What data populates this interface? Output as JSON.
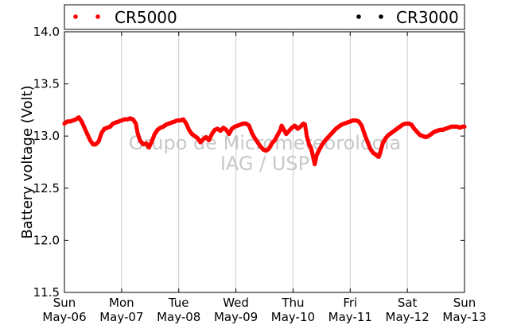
{
  "chart_data": {
    "type": "scatter",
    "ylabel": "Battery voltage (Volt)",
    "ylim": [
      11.5,
      14.0
    ],
    "yticks": [
      "11.5",
      "12.0",
      "12.5",
      "13.0",
      "13.5",
      "14.0"
    ],
    "xlim": [
      "2012-05-06",
      "2012-05-13"
    ],
    "xticks": [
      {
        "day": "Sun",
        "date": "May-06"
      },
      {
        "day": "Mon",
        "date": "May-07"
      },
      {
        "day": "Tue",
        "date": "May-08"
      },
      {
        "day": "Wed",
        "date": "May-09"
      },
      {
        "day": "Thu",
        "date": "May-10"
      },
      {
        "day": "Fri",
        "date": "May-11"
      },
      {
        "day": "Sat",
        "date": "May-12"
      },
      {
        "day": "Sun",
        "date": "May-13"
      }
    ],
    "grid": "vertical",
    "legend": {
      "placement": "top",
      "entries": [
        {
          "name": "CR5000",
          "color": "#ff0000"
        },
        {
          "name": "CR3000",
          "color": "#000000"
        }
      ]
    },
    "watermark": [
      "Grupo de Micrometeorologia",
      "IAG / USP"
    ],
    "series": [
      {
        "name": "CR5000",
        "color": "#ff0000",
        "points": [
          [
            0.0,
            13.12
          ],
          [
            0.05,
            13.14
          ],
          [
            0.1,
            13.14
          ],
          [
            0.15,
            13.15
          ],
          [
            0.2,
            13.16
          ],
          [
            0.25,
            13.18
          ],
          [
            0.3,
            13.14
          ],
          [
            0.35,
            13.08
          ],
          [
            0.4,
            13.02
          ],
          [
            0.45,
            12.96
          ],
          [
            0.5,
            12.92
          ],
          [
            0.55,
            12.92
          ],
          [
            0.6,
            12.95
          ],
          [
            0.65,
            13.03
          ],
          [
            0.7,
            13.07
          ],
          [
            0.75,
            13.08
          ],
          [
            0.8,
            13.09
          ],
          [
            0.85,
            13.12
          ],
          [
            0.9,
            13.13
          ],
          [
            0.95,
            13.14
          ],
          [
            1.0,
            13.15
          ],
          [
            1.05,
            13.16
          ],
          [
            1.1,
            13.16
          ],
          [
            1.15,
            13.17
          ],
          [
            1.2,
            13.16
          ],
          [
            1.25,
            13.12
          ],
          [
            1.28,
            13.03
          ],
          [
            1.32,
            12.96
          ],
          [
            1.38,
            12.92
          ],
          [
            1.43,
            12.93
          ],
          [
            1.48,
            12.89
          ],
          [
            1.53,
            12.95
          ],
          [
            1.58,
            13.02
          ],
          [
            1.63,
            13.06
          ],
          [
            1.68,
            13.08
          ],
          [
            1.73,
            13.09
          ],
          [
            1.78,
            13.11
          ],
          [
            1.83,
            13.12
          ],
          [
            1.88,
            13.13
          ],
          [
            1.93,
            13.14
          ],
          [
            1.98,
            13.15
          ],
          [
            2.03,
            13.15
          ],
          [
            2.08,
            13.16
          ],
          [
            2.13,
            13.12
          ],
          [
            2.18,
            13.06
          ],
          [
            2.23,
            13.02
          ],
          [
            2.28,
            13.0
          ],
          [
            2.33,
            12.98
          ],
          [
            2.38,
            12.94
          ],
          [
            2.43,
            12.97
          ],
          [
            2.48,
            12.99
          ],
          [
            2.53,
            12.96
          ],
          [
            2.58,
            13.02
          ],
          [
            2.63,
            13.06
          ],
          [
            2.68,
            13.07
          ],
          [
            2.73,
            13.05
          ],
          [
            2.78,
            13.08
          ],
          [
            2.83,
            13.06
          ],
          [
            2.88,
            13.02
          ],
          [
            2.93,
            13.07
          ],
          [
            2.98,
            13.09
          ],
          [
            3.03,
            13.1
          ],
          [
            3.08,
            13.11
          ],
          [
            3.13,
            13.12
          ],
          [
            3.18,
            13.12
          ],
          [
            3.23,
            13.1
          ],
          [
            3.28,
            13.03
          ],
          [
            3.33,
            12.98
          ],
          [
            3.38,
            12.94
          ],
          [
            3.43,
            12.9
          ],
          [
            3.48,
            12.87
          ],
          [
            3.53,
            12.86
          ],
          [
            3.58,
            12.88
          ],
          [
            3.63,
            12.93
          ],
          [
            3.68,
            12.96
          ],
          [
            3.73,
            13.01
          ],
          [
            3.78,
            13.06
          ],
          [
            3.8,
            13.1
          ],
          [
            3.83,
            13.07
          ],
          [
            3.88,
            13.02
          ],
          [
            3.93,
            13.05
          ],
          [
            3.98,
            13.08
          ],
          [
            4.03,
            13.1
          ],
          [
            4.08,
            13.07
          ],
          [
            4.13,
            13.09
          ],
          [
            4.18,
            13.12
          ],
          [
            4.21,
            13.11
          ],
          [
            4.24,
            13.0
          ],
          [
            4.28,
            12.92
          ],
          [
            4.31,
            12.89
          ],
          [
            4.33,
            12.85
          ],
          [
            4.36,
            12.78
          ],
          [
            4.38,
            12.73
          ],
          [
            4.41,
            12.81
          ],
          [
            4.45,
            12.86
          ],
          [
            4.5,
            12.91
          ],
          [
            4.55,
            12.95
          ],
          [
            4.6,
            12.98
          ],
          [
            4.65,
            13.01
          ],
          [
            4.7,
            13.04
          ],
          [
            4.75,
            13.07
          ],
          [
            4.8,
            13.09
          ],
          [
            4.85,
            13.11
          ],
          [
            4.9,
            13.12
          ],
          [
            4.95,
            13.13
          ],
          [
            5.0,
            13.14
          ],
          [
            5.05,
            13.15
          ],
          [
            5.1,
            13.15
          ],
          [
            5.15,
            13.14
          ],
          [
            5.2,
            13.1
          ],
          [
            5.25,
            13.02
          ],
          [
            5.3,
            12.95
          ],
          [
            5.35,
            12.88
          ],
          [
            5.4,
            12.84
          ],
          [
            5.45,
            12.82
          ],
          [
            5.5,
            12.8
          ],
          [
            5.53,
            12.85
          ],
          [
            5.57,
            12.93
          ],
          [
            5.62,
            12.98
          ],
          [
            5.67,
            13.01
          ],
          [
            5.72,
            13.03
          ],
          [
            5.77,
            13.05
          ],
          [
            5.82,
            13.07
          ],
          [
            5.87,
            13.09
          ],
          [
            5.92,
            13.11
          ],
          [
            5.97,
            13.12
          ],
          [
            6.02,
            13.12
          ],
          [
            6.07,
            13.11
          ],
          [
            6.12,
            13.07
          ],
          [
            6.17,
            13.04
          ],
          [
            6.22,
            13.01
          ],
          [
            6.27,
            13.0
          ],
          [
            6.32,
            12.99
          ],
          [
            6.37,
            13.0
          ],
          [
            6.42,
            13.02
          ],
          [
            6.47,
            13.04
          ],
          [
            6.52,
            13.05
          ],
          [
            6.57,
            13.06
          ],
          [
            6.62,
            13.06
          ],
          [
            6.67,
            13.07
          ],
          [
            6.72,
            13.08
          ],
          [
            6.77,
            13.09
          ],
          [
            6.82,
            13.09
          ],
          [
            6.87,
            13.09
          ],
          [
            6.92,
            13.08
          ],
          [
            6.96,
            13.09
          ],
          [
            7.0,
            13.09
          ]
        ]
      },
      {
        "name": "CR3000",
        "color": "#000000",
        "points": []
      }
    ]
  }
}
